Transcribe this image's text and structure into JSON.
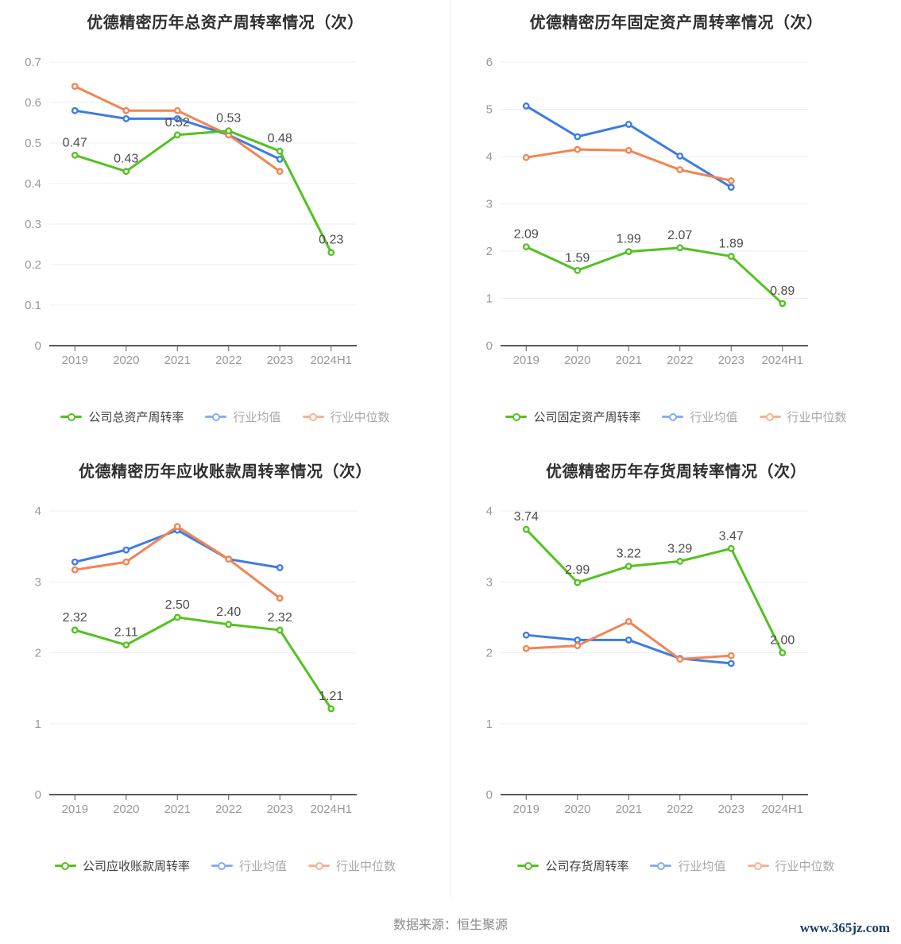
{
  "footer": {
    "source": "数据来源：恒生聚源",
    "site": "www.365jz.com"
  },
  "colors": {
    "company_series": "#54c120",
    "industry_avg_series": "#3d7be4",
    "industry_median_series": "#f28453",
    "grid": "#e9eef8",
    "axis": "#565b61",
    "tick_label": "#999999",
    "data_label": "#4d4d4d",
    "title_text": "#2f2f2f",
    "legend_dim_text": "#a8a8a8",
    "site_link": "#1c3e6e"
  },
  "chart_data": [
    {
      "type": "line",
      "title": "优德精密历年总资产周转率情况（次）",
      "categories": [
        "2019",
        "2020",
        "2021",
        "2022",
        "2023",
        "2024H1"
      ],
      "ylim": [
        0,
        0.7
      ],
      "yticks": [
        0,
        0.1,
        0.2,
        0.3,
        0.4,
        0.5,
        0.6,
        0.7
      ],
      "ytick_labels": [
        "0",
        "0.1",
        "0.2",
        "0.3",
        "0.4",
        "0.5",
        "0.6",
        "0.7"
      ],
      "grid_on": true,
      "legend_position": "bottom",
      "series": [
        {
          "name": "公司总资产周转率",
          "color": "#54c120",
          "values": [
            0.47,
            0.43,
            0.52,
            0.53,
            0.48,
            0.23
          ],
          "labels": [
            "0.47",
            "0.43",
            "0.52",
            "0.53",
            "0.48",
            "0.23"
          ]
        },
        {
          "name": "行业均值",
          "color": "#3d7be4",
          "values": [
            0.58,
            0.56,
            0.56,
            0.52,
            0.46
          ]
        },
        {
          "name": "行业中位数",
          "color": "#f28453",
          "values": [
            0.64,
            0.58,
            0.58,
            0.52,
            0.43
          ]
        }
      ]
    },
    {
      "type": "line",
      "title": "优德精密历年固定资产周转率情况（次）",
      "categories": [
        "2019",
        "2020",
        "2021",
        "2022",
        "2023",
        "2024H1"
      ],
      "ylim": [
        0,
        6
      ],
      "yticks": [
        0,
        1,
        2,
        3,
        4,
        5,
        6
      ],
      "ytick_labels": [
        "0",
        "1",
        "2",
        "3",
        "4",
        "5",
        "6"
      ],
      "grid_on": true,
      "legend_position": "bottom",
      "series": [
        {
          "name": "公司固定资产周转率",
          "color": "#54c120",
          "values": [
            2.09,
            1.59,
            1.99,
            2.07,
            1.89,
            0.89
          ],
          "labels": [
            "2.09",
            "1.59",
            "1.99",
            "2.07",
            "1.89",
            "0.89"
          ]
        },
        {
          "name": "行业均值",
          "color": "#3d7be4",
          "values": [
            5.07,
            4.42,
            4.68,
            4.01,
            3.35
          ]
        },
        {
          "name": "行业中位数",
          "color": "#f28453",
          "values": [
            3.98,
            4.15,
            4.13,
            3.72,
            3.49
          ]
        }
      ]
    },
    {
      "type": "line",
      "title": "优德精密历年应收账款周转率情况（次）",
      "categories": [
        "2019",
        "2020",
        "2021",
        "2022",
        "2023",
        "2024H1"
      ],
      "ylim": [
        0,
        4
      ],
      "yticks": [
        0,
        1,
        2,
        3,
        4
      ],
      "ytick_labels": [
        "0",
        "1",
        "2",
        "3",
        "4"
      ],
      "grid_on": true,
      "legend_position": "bottom",
      "series": [
        {
          "name": "公司应收账款周转率",
          "color": "#54c120",
          "values": [
            2.32,
            2.11,
            2.5,
            2.4,
            2.32,
            1.21
          ],
          "labels": [
            "2.32",
            "2.11",
            "2.50",
            "2.40",
            "2.32",
            "1.21"
          ]
        },
        {
          "name": "行业均值",
          "color": "#3d7be4",
          "values": [
            3.28,
            3.45,
            3.73,
            3.32,
            3.2
          ]
        },
        {
          "name": "行业中位数",
          "color": "#f28453",
          "values": [
            3.17,
            3.28,
            3.78,
            3.32,
            2.77
          ]
        }
      ]
    },
    {
      "type": "line",
      "title": "优德精密历年存货周转率情况（次）",
      "categories": [
        "2019",
        "2020",
        "2021",
        "2022",
        "2023",
        "2024H1"
      ],
      "ylim": [
        0,
        4
      ],
      "yticks": [
        0,
        1,
        2,
        3,
        4
      ],
      "ytick_labels": [
        "0",
        "1",
        "2",
        "3",
        "4"
      ],
      "grid_on": true,
      "legend_position": "bottom",
      "series": [
        {
          "name": "公司存货周转率",
          "color": "#54c120",
          "values": [
            3.74,
            2.99,
            3.22,
            3.29,
            3.47,
            2.0
          ],
          "labels": [
            "3.74",
            "2.99",
            "3.22",
            "3.29",
            "3.47",
            "2.00"
          ]
        },
        {
          "name": "行业均值",
          "color": "#3d7be4",
          "values": [
            2.25,
            2.18,
            2.18,
            1.92,
            1.85
          ]
        },
        {
          "name": "行业中位数",
          "color": "#f28453",
          "values": [
            2.06,
            2.1,
            2.44,
            1.91,
            1.96
          ]
        }
      ]
    }
  ]
}
